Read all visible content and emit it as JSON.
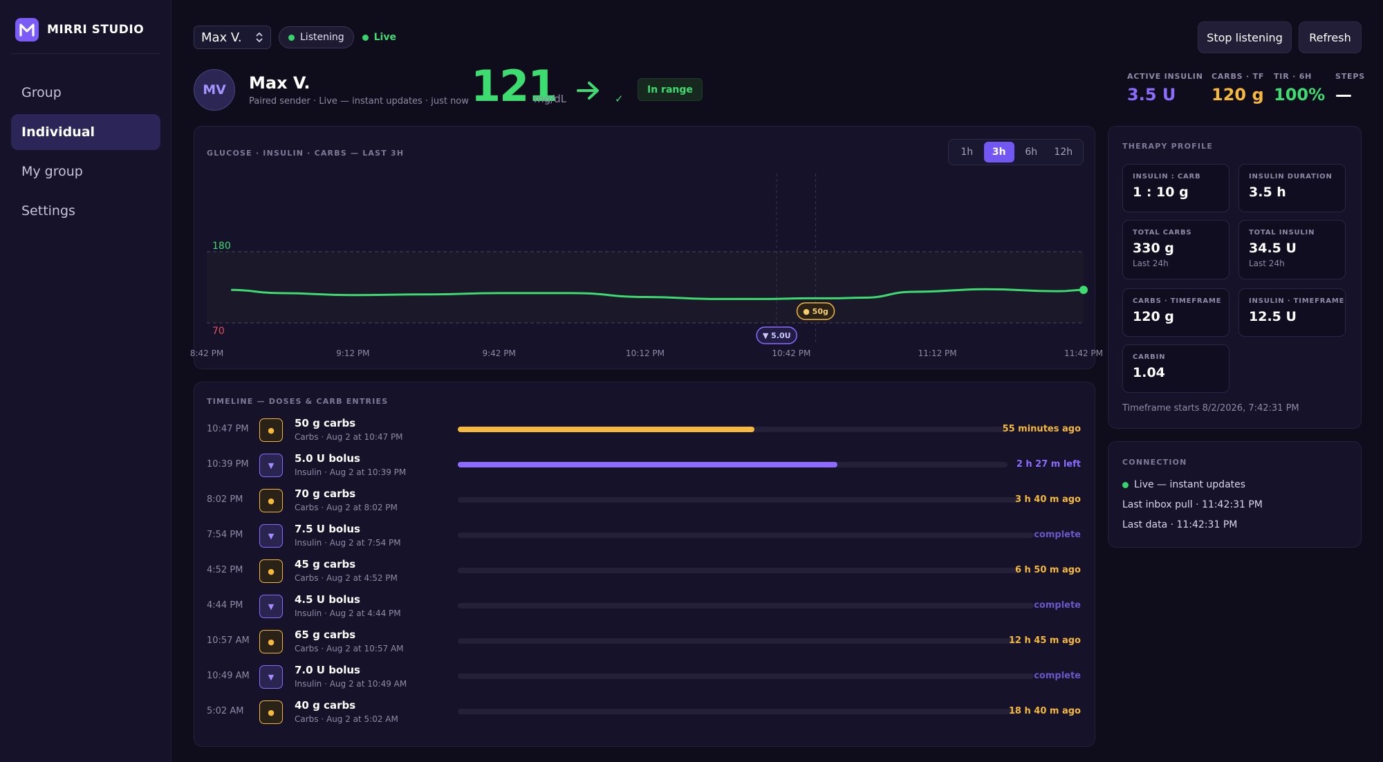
{
  "brand": {
    "name": "MIRRI STUDIO"
  },
  "nav": {
    "items": [
      {
        "label": "Group"
      },
      {
        "label": "Individual"
      },
      {
        "label": "My group"
      },
      {
        "label": "Settings"
      }
    ]
  },
  "topbar": {
    "selected_user": "Max V.",
    "listening_label": "Listening",
    "live_label": "Live",
    "stop_label": "Stop listening",
    "refresh_label": "Refresh"
  },
  "profile": {
    "initials": "MV",
    "name": "Max V.",
    "subtitle": "Paired sender · Live — instant updates · just now",
    "glucose": "121",
    "unit": "mg/dL",
    "trend": "arrow-right-icon",
    "range_badge": "In range"
  },
  "stats": [
    {
      "label": "ACTIVE INSULIN",
      "value": "3.5 U",
      "color": "#8b6cff"
    },
    {
      "label": "CARBS · TF",
      "value": "120 g",
      "color": "#f6b93b"
    },
    {
      "label": "TIR · 6H",
      "value": "100%",
      "color": "#3ddc70"
    },
    {
      "label": "STEPS",
      "value": "—",
      "color": "#ffffff"
    }
  ],
  "chart_card": {
    "title": "GLUCOSE · INSULIN · CARBS — LAST 3H",
    "ranges": [
      "1h",
      "3h",
      "6h",
      "12h"
    ],
    "active_range": "3h"
  },
  "chart_data": {
    "type": "line",
    "title": "GLUCOSE · INSULIN · CARBS — LAST 3H",
    "x_ticks": [
      "8:42 PM",
      "9:12 PM",
      "9:42 PM",
      "10:12 PM",
      "10:42 PM",
      "11:12 PM",
      "11:42 PM"
    ],
    "x_minutes": [
      0,
      30,
      60,
      90,
      120,
      150,
      180
    ],
    "thresholds": {
      "high": 180,
      "low": 70
    },
    "ylim": [
      40,
      300
    ],
    "series": [
      {
        "x": [
          5,
          15,
          30,
          45,
          60,
          75,
          90,
          105,
          115,
          123,
          128,
          135,
          145,
          160,
          175,
          180
        ],
        "y": [
          121,
          116,
          113,
          114,
          116,
          116,
          110,
          107,
          107,
          108,
          108,
          109,
          118,
          122,
          119,
          121
        ],
        "color": "#3ddc70"
      }
    ],
    "markers": [
      {
        "type": "insulin",
        "label": "▼ 5.0U",
        "x": 117
      },
      {
        "type": "carbs",
        "label": "● 50g",
        "x": 125
      }
    ],
    "grid": false
  },
  "timeline": {
    "title": "TIMELINE — DOSES & CARB ENTRIES",
    "items": [
      {
        "time": "10:47 PM",
        "kind": "carb",
        "title": "50 g carbs",
        "sub": "Carbs · Aug 2 at 10:47 PM",
        "progress": 0.54,
        "status": "55 minutes ago"
      },
      {
        "time": "10:39 PM",
        "kind": "ins",
        "title": "5.0 U bolus",
        "sub": "Insulin · Aug 2 at 10:39 PM",
        "progress": 0.69,
        "status": "2 h 27 m left"
      },
      {
        "time": "8:02 PM",
        "kind": "carb",
        "title": "70 g carbs",
        "sub": "Carbs · Aug 2 at 8:02 PM",
        "progress": 0,
        "status": "3 h 40 m ago"
      },
      {
        "time": "7:54 PM",
        "kind": "ins",
        "title": "7.5 U bolus",
        "sub": "Insulin · Aug 2 at 7:54 PM",
        "progress": 0,
        "status": "complete"
      },
      {
        "time": "4:52 PM",
        "kind": "carb",
        "title": "45 g carbs",
        "sub": "Carbs · Aug 2 at 4:52 PM",
        "progress": 0,
        "status": "6 h 50 m ago"
      },
      {
        "time": "4:44 PM",
        "kind": "ins",
        "title": "4.5 U bolus",
        "sub": "Insulin · Aug 2 at 4:44 PM",
        "progress": 0,
        "status": "complete"
      },
      {
        "time": "10:57 AM",
        "kind": "carb",
        "title": "65 g carbs",
        "sub": "Carbs · Aug 2 at 10:57 AM",
        "progress": 0,
        "status": "12 h 45 m ago"
      },
      {
        "time": "10:49 AM",
        "kind": "ins",
        "title": "7.0 U bolus",
        "sub": "Insulin · Aug 2 at 10:49 AM",
        "progress": 0,
        "status": "complete"
      },
      {
        "time": "5:02 AM",
        "kind": "carb",
        "title": "40 g carbs",
        "sub": "Carbs · Aug 2 at 5:02 AM",
        "progress": 0,
        "status": "18 h 40 m ago"
      }
    ]
  },
  "therapy": {
    "title": "THERAPY PROFILE",
    "boxes": [
      {
        "label": "INSULIN : CARB",
        "value": "1 : 10 g",
        "note": ""
      },
      {
        "label": "INSULIN DURATION",
        "value": "3.5 h",
        "note": ""
      },
      {
        "label": "TOTAL CARBS",
        "value": "330 g",
        "note": "Last 24h"
      },
      {
        "label": "TOTAL INSULIN",
        "value": "34.5 U",
        "note": "Last 24h"
      },
      {
        "label": "CARBS · TIMEFRAME",
        "value": "120 g",
        "note": ""
      },
      {
        "label": "INSULIN · TIMEFRAME",
        "value": "12.5 U",
        "note": ""
      },
      {
        "label": "CARBIN",
        "value": "1.04",
        "note": ""
      }
    ],
    "footer": "Timeframe starts 8/2/2026, 7:42:31 PM"
  },
  "connection": {
    "title": "CONNECTION",
    "status": "Live — instant updates",
    "inbox": "Last inbox pull · 11:42:31 PM",
    "data": "Last data · 11:42:31 PM"
  }
}
